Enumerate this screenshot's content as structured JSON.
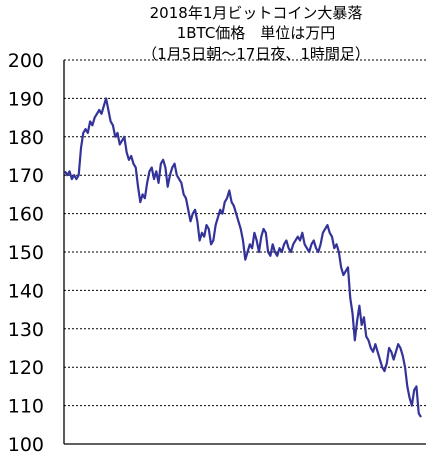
{
  "chart_data": {
    "type": "line",
    "title_lines": [
      "2018年1月ビットコイン大暴落",
      "1BTC価格　単位は万円",
      "（1月5日朝～17日夜、1時間足）"
    ],
    "xlabel": "",
    "ylabel": "",
    "ylim": [
      100,
      200
    ],
    "y_ticks": [
      100,
      110,
      120,
      130,
      140,
      150,
      160,
      170,
      180,
      190,
      200
    ],
    "grid": "horizontal dotted",
    "x_ticks": [],
    "series": [
      {
        "color": "#33339a",
        "values": [
          171,
          170,
          171,
          169,
          170,
          169,
          170,
          177,
          181,
          182,
          181,
          184,
          183,
          185,
          186,
          187,
          186,
          188,
          190,
          187,
          184,
          183,
          180,
          181,
          178,
          179,
          180,
          176,
          174,
          175,
          173,
          172,
          167,
          163,
          165,
          164,
          168,
          171,
          172,
          169,
          171,
          168,
          173,
          174,
          172,
          167,
          170,
          172,
          173,
          170,
          169,
          168,
          165,
          164,
          161,
          158,
          160,
          161,
          158,
          153,
          155,
          154,
          157,
          156,
          152,
          153,
          157,
          159,
          161,
          160,
          163,
          164,
          166,
          163,
          162,
          160,
          158,
          156,
          153,
          148,
          150,
          152,
          151,
          155,
          153,
          150,
          154,
          156,
          155,
          150,
          149,
          152,
          150,
          149,
          151,
          150,
          152,
          153,
          151,
          150,
          152,
          153,
          154,
          153,
          155,
          152,
          151,
          150,
          152,
          153,
          151,
          150,
          152,
          155,
          156,
          157,
          155,
          154,
          151,
          152,
          150,
          146,
          144,
          145,
          146,
          138,
          134,
          127,
          132,
          136,
          131,
          133,
          128,
          127,
          125,
          124,
          126,
          124,
          122,
          120,
          119,
          121,
          125,
          124,
          122,
          124,
          126,
          125,
          123,
          120,
          115,
          112,
          110,
          114,
          115,
          108,
          107
        ]
      }
    ]
  },
  "colors": {
    "line": "#33339a",
    "grid": "#000000",
    "axis": "#000000",
    "background": "#ffffff"
  }
}
